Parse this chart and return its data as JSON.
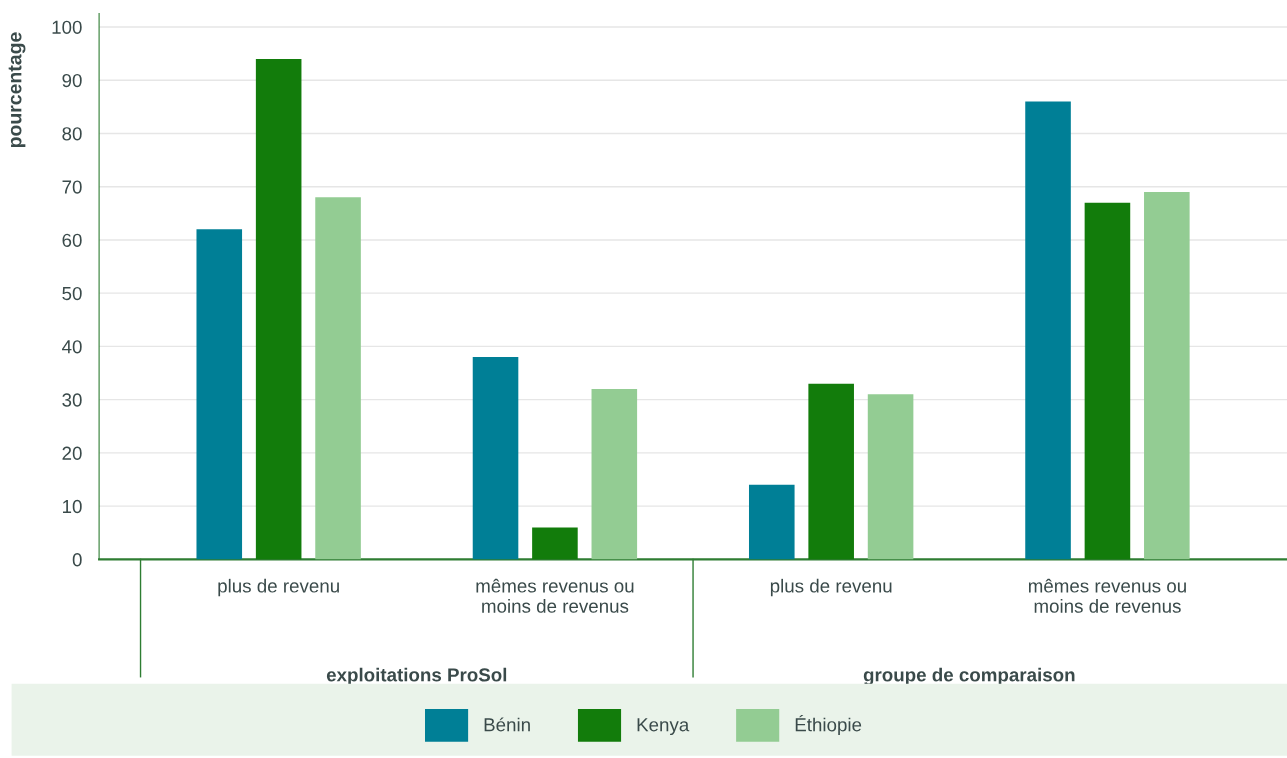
{
  "chart_data": {
    "type": "bar",
    "ylabel": "pourcentage",
    "categories": [
      "plus de revenu",
      "mêmes revenus ou\nmoins de revenus",
      "plus de revenu",
      "mêmes revenus ou\nmoins de revenus"
    ],
    "series": [
      {
        "name": "Bénin",
        "color": "#007f96",
        "values": [
          62,
          38,
          14,
          86
        ]
      },
      {
        "name": "Kenya",
        "color": "#127c0b",
        "values": [
          94,
          6,
          33,
          67
        ]
      },
      {
        "name": "Éthiopie",
        "color": "#93cc93",
        "values": [
          68,
          32,
          31,
          69
        ]
      }
    ],
    "annotations": [
      "exploitations ProSol",
      "groupe de comparaison"
    ],
    "ylim": [
      0,
      102.5
    ],
    "yticks": [
      0,
      10,
      20,
      30,
      40,
      50,
      60,
      70,
      80,
      90,
      100
    ],
    "grid": "y",
    "legend": "bottom"
  }
}
